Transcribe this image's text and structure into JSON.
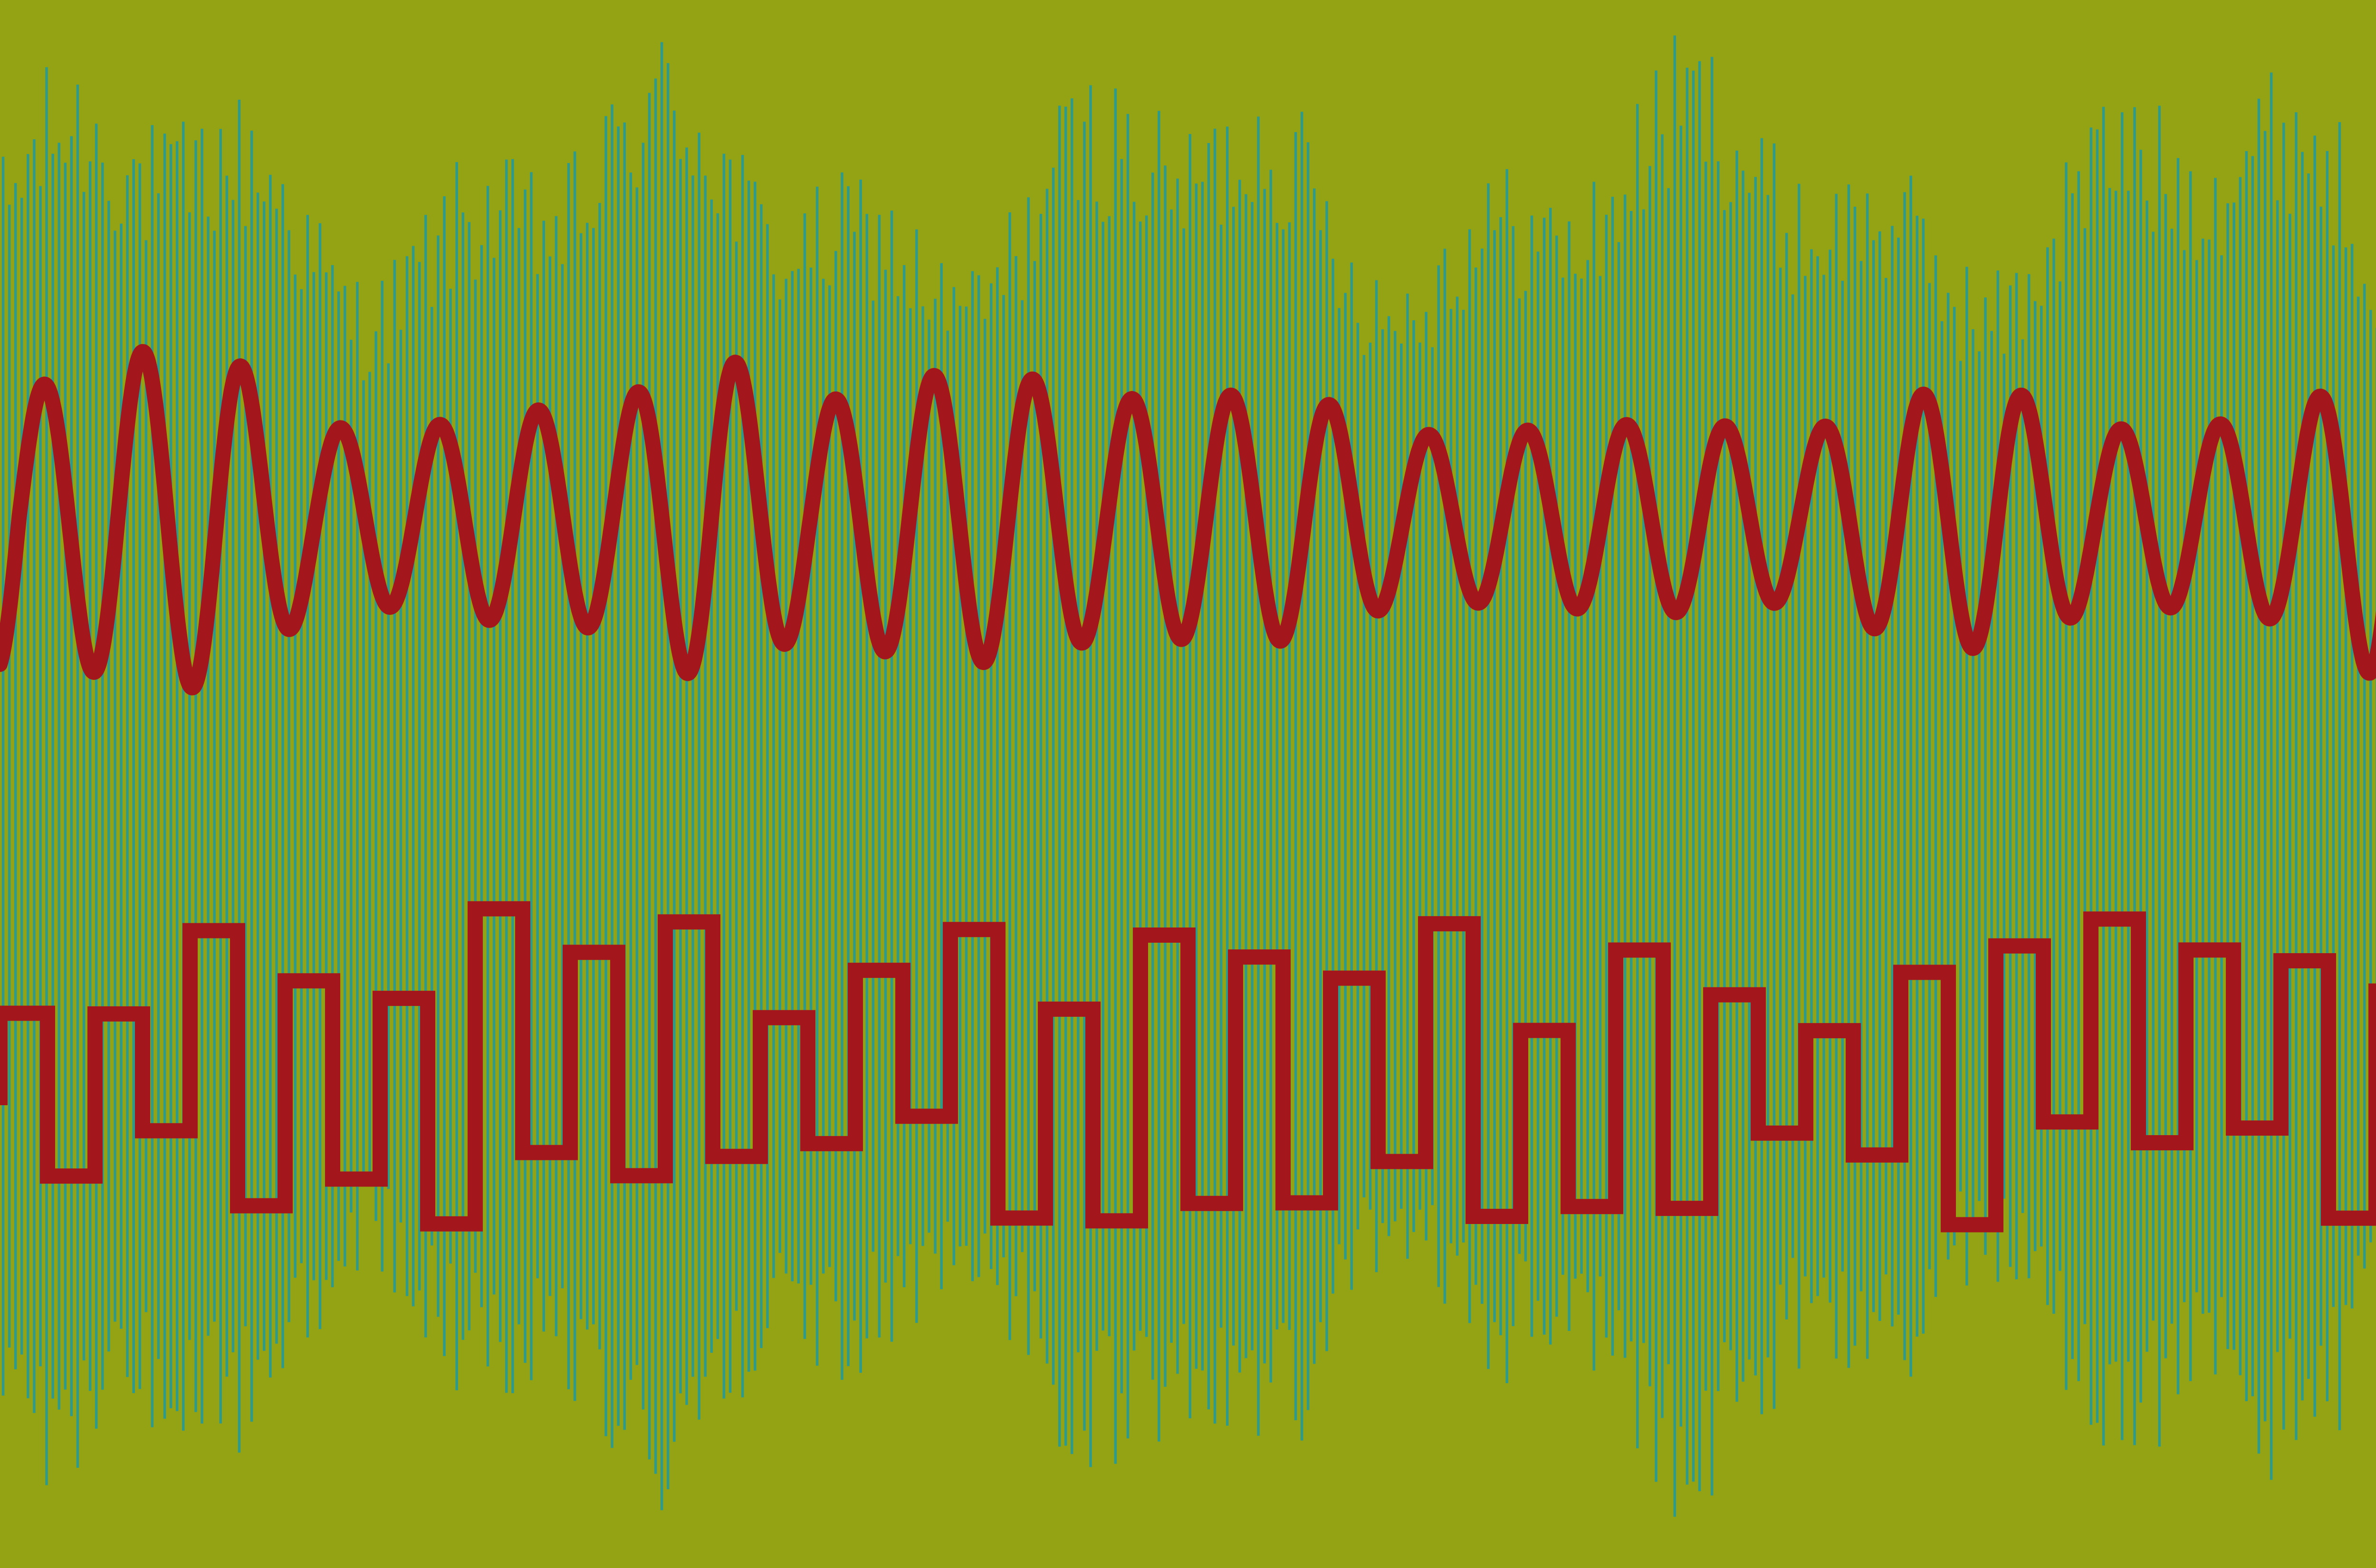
{
  "artwork": {
    "background_color": "#93a313",
    "colors": {
      "bars": "#2e9a8c",
      "waves": "#a3161b"
    },
    "bar_count": 390,
    "smooth_wave_cycles": 25,
    "square_wave_steps": 51
  }
}
